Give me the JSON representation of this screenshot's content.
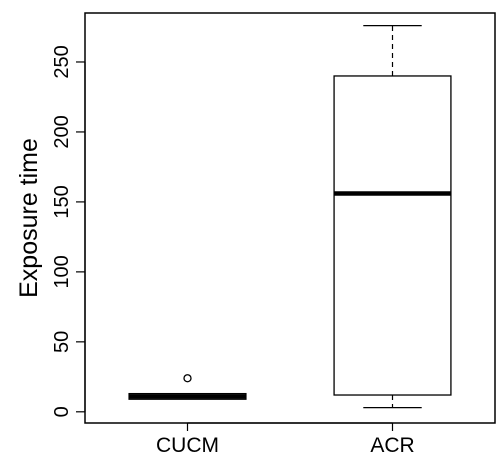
{
  "chart_data": {
    "type": "boxplot",
    "title": "",
    "xlabel": "",
    "ylabel": "Exposure time",
    "ylim": [
      -8,
      285
    ],
    "yticks": [
      0,
      50,
      100,
      150,
      200,
      250
    ],
    "grid": false,
    "categories": [
      "CUCM",
      "ACR"
    ],
    "boxes": [
      {
        "category": "CUCM",
        "whisker_low": 9,
        "q1": 9,
        "median": 11,
        "q3": 13,
        "whisker_high": 13,
        "outliers": [
          24
        ]
      },
      {
        "category": "ACR",
        "whisker_low": 3,
        "q1": 12,
        "median": 156,
        "q3": 240,
        "whisker_high": 276,
        "outliers": []
      }
    ],
    "colors": {
      "box_fill": "#ffffff",
      "stroke": "#000000"
    }
  }
}
